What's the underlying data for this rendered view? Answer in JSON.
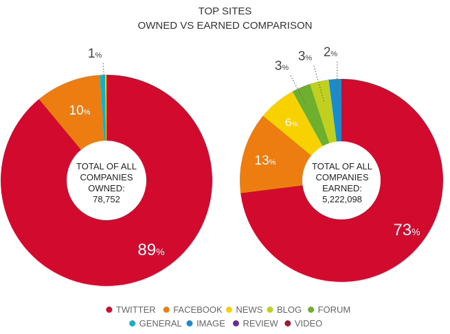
{
  "chart_data": {
    "type": "pie",
    "title": "TOP SITES",
    "subtitle": "OWNED VS EARNED COMPARISON",
    "legend": {
      "placement": "bottom",
      "items": [
        {
          "name": "TWITTER",
          "color": "#d20a2e"
        },
        {
          "name": "FACEBOOK",
          "color": "#ee7d11"
        },
        {
          "name": "NEWS",
          "color": "#f8d100"
        },
        {
          "name": "BLOG",
          "color": "#c1cf1e"
        },
        {
          "name": "FORUM",
          "color": "#6eb02e"
        },
        {
          "name": "GENERAL",
          "color": "#14b1c4"
        },
        {
          "name": "IMAGE",
          "color": "#1b8ccb"
        },
        {
          "name": "REVIEW",
          "color": "#6a2c91"
        },
        {
          "name": "VIDEO",
          "color": "#9b1c30"
        }
      ]
    },
    "charts": [
      {
        "center_lines": [
          "TOTAL OF ALL",
          "COMPANIES",
          "OWNED:",
          "78,752"
        ],
        "slices": [
          {
            "name": "TWITTER",
            "value": 89,
            "label": "89",
            "color": "#d20a2e"
          },
          {
            "name": "FACEBOOK",
            "value": 10,
            "label": "10",
            "color": "#ee7d11"
          },
          {
            "name": "GENERAL",
            "value": 0.8,
            "label": "1",
            "color": "#14b1c4"
          },
          {
            "name": "NEWS",
            "value": 0.2,
            "label": "",
            "color": "#f8d100"
          }
        ]
      },
      {
        "center_lines": [
          "TOTAL OF ALL",
          "COMPANIES",
          "EARNED:",
          "5,222,098"
        ],
        "slices": [
          {
            "name": "TWITTER",
            "value": 73,
            "label": "73",
            "color": "#d20a2e"
          },
          {
            "name": "FACEBOOK",
            "value": 13,
            "label": "13",
            "color": "#ee7d11"
          },
          {
            "name": "NEWS",
            "value": 6,
            "label": "6",
            "color": "#f8d100"
          },
          {
            "name": "FORUM",
            "value": 3,
            "label": "3",
            "color": "#6eb02e"
          },
          {
            "name": "BLOG",
            "value": 3,
            "label": "3",
            "color": "#c1cf1e"
          },
          {
            "name": "IMAGE",
            "value": 2,
            "label": "2",
            "color": "#1b8ccb"
          }
        ]
      }
    ],
    "percent_symbol": "%"
  }
}
